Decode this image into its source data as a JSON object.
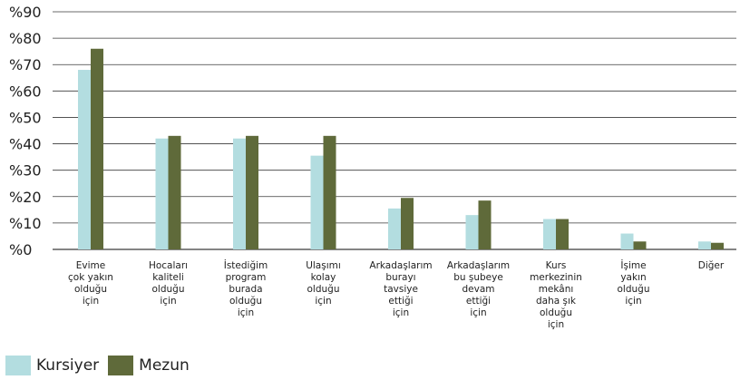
{
  "chart_data": {
    "type": "bar",
    "categories": [
      [
        "Evime",
        "çok yakın",
        "olduğu",
        "için"
      ],
      [
        "Hocaları",
        "kaliteli",
        "olduğu",
        "için"
      ],
      [
        "İstediğim",
        "program",
        "burada",
        "olduğu",
        "için"
      ],
      [
        "Ulaşımı",
        "kolay",
        "olduğu",
        "için"
      ],
      [
        "Arkadaşlarım",
        "burayı",
        "tavsiye",
        "ettiği",
        "için"
      ],
      [
        "Arkadaşlarım",
        "bu şubeye",
        "devam",
        "ettiği",
        "için"
      ],
      [
        "Kurs",
        "merkezinin",
        "mekânı",
        "daha şık",
        "olduğu",
        "için"
      ],
      [
        "İşime",
        "yakın",
        "olduğu",
        "için"
      ],
      [
        "Diğer"
      ]
    ],
    "series": [
      {
        "name": "Kursiyer",
        "color": "#b3dde0",
        "values": [
          68,
          42,
          42,
          35.5,
          15.5,
          13,
          11.5,
          6,
          3
        ]
      },
      {
        "name": "Mezun",
        "color": "#5f6a3a",
        "values": [
          76,
          43,
          43,
          43,
          19.5,
          18.5,
          11.5,
          3,
          2.5
        ]
      }
    ],
    "yticks": [
      "%0",
      "%10",
      "%20",
      "%30",
      "%40",
      "%50",
      "%60",
      "%70",
      "%80",
      "%90"
    ],
    "ylim": [
      0,
      90
    ],
    "grid": true,
    "legend_position": "bottom-left",
    "title": "",
    "xlabel": "",
    "ylabel": ""
  }
}
